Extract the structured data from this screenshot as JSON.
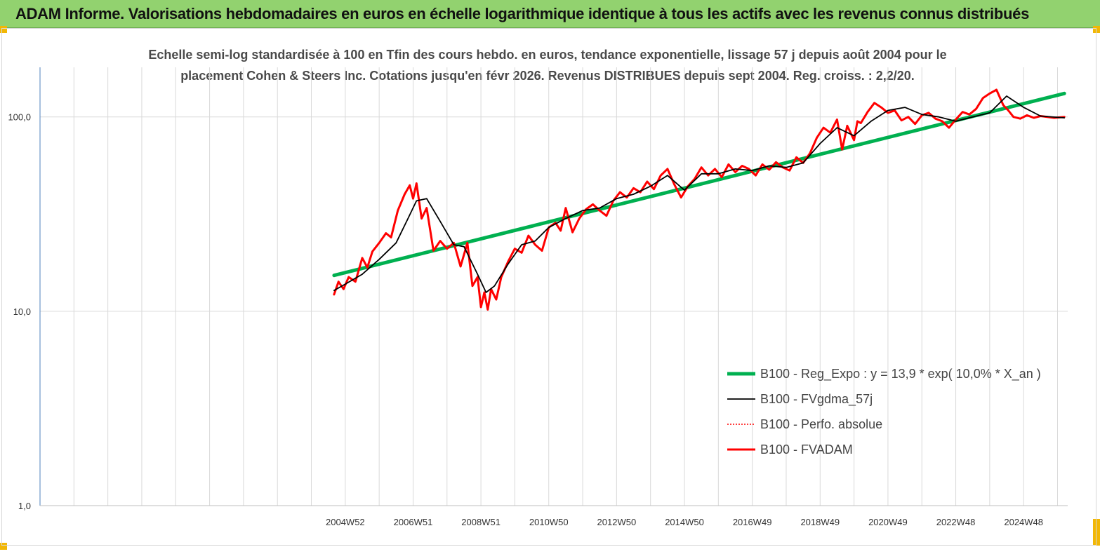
{
  "banner": {
    "title": "ADAM Informe. Valorisations hebdomadaires en euros en échelle logarithmique identique à tous les actifs avec les revenus connus distribués"
  },
  "colors": {
    "banner": "#92d26f",
    "corner": "#f2b705",
    "reg_expo": "#00b050",
    "fvgdma": "#000000",
    "perfo": "#ff0000",
    "fvadam": "#ff0000",
    "axis": "#4f81bd",
    "grid": "#d9d9d9"
  },
  "chart_data": {
    "type": "line",
    "title": [
      "Echelle semi-log standardisée à 100 en Tfin des cours hebdo. en euros, tendance exponentielle, lissage 57 j depuis août 2004 pour le",
      "placement Cohen & Steers Inc. Cotations jusqu'en févr 2026. Revenus DISTRIBUES depuis sept 2004. Reg. croiss. : 2,2/20."
    ],
    "y_scale": "log",
    "ylim": [
      1,
      180
    ],
    "y_ticks": [
      {
        "value": 1,
        "label": "1,0"
      },
      {
        "value": 10,
        "label": "10,0"
      },
      {
        "value": 100,
        "label": "100,0"
      }
    ],
    "x_tick_labels": [
      "2004W52",
      "2006W51",
      "2008W51",
      "2010W50",
      "2012W50",
      "2014W50",
      "2016W49",
      "2018W49",
      "2020W49",
      "2022W48",
      "2024W48"
    ],
    "x_tick_positions": [
      2005.0,
      2007.0,
      2009.0,
      2011.0,
      2013.0,
      2015.0,
      2017.0,
      2019.0,
      2021.0,
      2023.0,
      2025.0
    ],
    "xlim": [
      1996.0,
      2026.3
    ],
    "grid": true,
    "legend_position": "bottom-right",
    "series": [
      {
        "name": "B100 - Reg_Expo : y = 13,9 * exp( 10,0% *  X_an )",
        "style": "green-thick",
        "x": [
          2004.67,
          2026.2
        ],
        "y": [
          15.3,
          132
        ]
      },
      {
        "name": "B100 - FVgdma_57j",
        "style": "black-thin",
        "x": [
          2004.67,
          2005.0,
          2005.5,
          2006.0,
          2006.5,
          2006.85,
          2007.1,
          2007.4,
          2007.8,
          2008.2,
          2008.5,
          2008.9,
          2009.15,
          2009.4,
          2009.8,
          2010.2,
          2010.6,
          2011.0,
          2011.5,
          2012.0,
          2012.5,
          2013.0,
          2013.5,
          2014.0,
          2014.5,
          2015.0,
          2015.5,
          2016.0,
          2016.5,
          2017.0,
          2017.5,
          2018.0,
          2018.5,
          2019.0,
          2019.5,
          2020.0,
          2020.5,
          2021.0,
          2021.5,
          2022.0,
          2022.5,
          2023.0,
          2023.5,
          2024.0,
          2024.5,
          2025.0,
          2025.5,
          2026.2
        ],
        "y": [
          12.8,
          13.8,
          15.5,
          18.5,
          22.5,
          30,
          37,
          38,
          29,
          22,
          21.5,
          15.5,
          12.5,
          13.5,
          17.5,
          22,
          23,
          27,
          30,
          33,
          34,
          38,
          40,
          44,
          50,
          42,
          51,
          51,
          54,
          53,
          56,
          55,
          58,
          73,
          88,
          80,
          95,
          108,
          112,
          103,
          100,
          95,
          100,
          105,
          128,
          112,
          101,
          99
        ]
      },
      {
        "name": "B100 - Perfo. absolue",
        "style": "red-dotted",
        "x": [],
        "y": []
      },
      {
        "name": "B100 - FVADAM",
        "style": "red-thick",
        "x": [
          2004.67,
          2004.8,
          2004.95,
          2005.1,
          2005.3,
          2005.5,
          2005.65,
          2005.8,
          2006.0,
          2006.2,
          2006.35,
          2006.55,
          2006.75,
          2006.9,
          2007.0,
          2007.1,
          2007.25,
          2007.4,
          2007.6,
          2007.8,
          2008.0,
          2008.2,
          2008.4,
          2008.6,
          2008.75,
          2008.9,
          2009.0,
          2009.1,
          2009.2,
          2009.3,
          2009.45,
          2009.6,
          2009.8,
          2010.0,
          2010.2,
          2010.4,
          2010.6,
          2010.8,
          2011.0,
          2011.2,
          2011.35,
          2011.5,
          2011.7,
          2011.9,
          2012.1,
          2012.3,
          2012.5,
          2012.7,
          2012.9,
          2013.1,
          2013.3,
          2013.5,
          2013.7,
          2013.9,
          2014.1,
          2014.3,
          2014.5,
          2014.7,
          2014.9,
          2015.1,
          2015.3,
          2015.5,
          2015.7,
          2015.9,
          2016.1,
          2016.3,
          2016.5,
          2016.7,
          2016.9,
          2017.1,
          2017.3,
          2017.5,
          2017.7,
          2017.9,
          2018.1,
          2018.3,
          2018.5,
          2018.7,
          2018.9,
          2019.1,
          2019.3,
          2019.5,
          2019.65,
          2019.8,
          2020.0,
          2020.1,
          2020.2,
          2020.4,
          2020.6,
          2020.8,
          2021.0,
          2021.2,
          2021.4,
          2021.6,
          2021.8,
          2022.0,
          2022.2,
          2022.4,
          2022.6,
          2022.8,
          2023.0,
          2023.2,
          2023.4,
          2023.6,
          2023.8,
          2024.0,
          2024.2,
          2024.4,
          2024.55,
          2024.7,
          2024.9,
          2025.1,
          2025.3,
          2025.5,
          2025.7,
          2025.9,
          2026.2
        ],
        "y": [
          12.2,
          14.2,
          13.0,
          15.0,
          14.2,
          18.8,
          16.8,
          20.3,
          22.5,
          25.2,
          24.0,
          33.0,
          40.0,
          44.5,
          38.0,
          45.5,
          30.0,
          34.0,
          20.5,
          23.0,
          21.0,
          22.5,
          17.0,
          22.5,
          13.5,
          15.0,
          10.5,
          12.5,
          10.2,
          13.0,
          11.5,
          15.0,
          18.0,
          21.0,
          20.0,
          24.5,
          22.0,
          20.5,
          27.0,
          28.5,
          26.0,
          34.0,
          25.5,
          30.0,
          33.5,
          35.5,
          33.0,
          31.0,
          37.0,
          41.0,
          38.5,
          43.0,
          41.0,
          46.5,
          42.5,
          50.0,
          54.0,
          45.0,
          38.5,
          44.0,
          48.0,
          55.0,
          50.0,
          54.0,
          49.0,
          57.0,
          52.0,
          56.0,
          54.0,
          50.0,
          57.0,
          53.5,
          58.5,
          55.0,
          53.0,
          62.0,
          58.0,
          65.0,
          78.0,
          88.0,
          83.0,
          97.0,
          68.0,
          90.0,
          76.0,
          95.0,
          93.0,
          106.0,
          118.0,
          112.0,
          105.0,
          108.0,
          96.0,
          100.0,
          92.0,
          102.0,
          105.0,
          98.0,
          95.0,
          88.0,
          97.0,
          106.0,
          103.0,
          110.0,
          125.0,
          132.0,
          138.0,
          115.0,
          108.0,
          100.0,
          98.0,
          102.0,
          99.0,
          101.0,
          100.0,
          99.0,
          100.0
        ]
      }
    ]
  }
}
